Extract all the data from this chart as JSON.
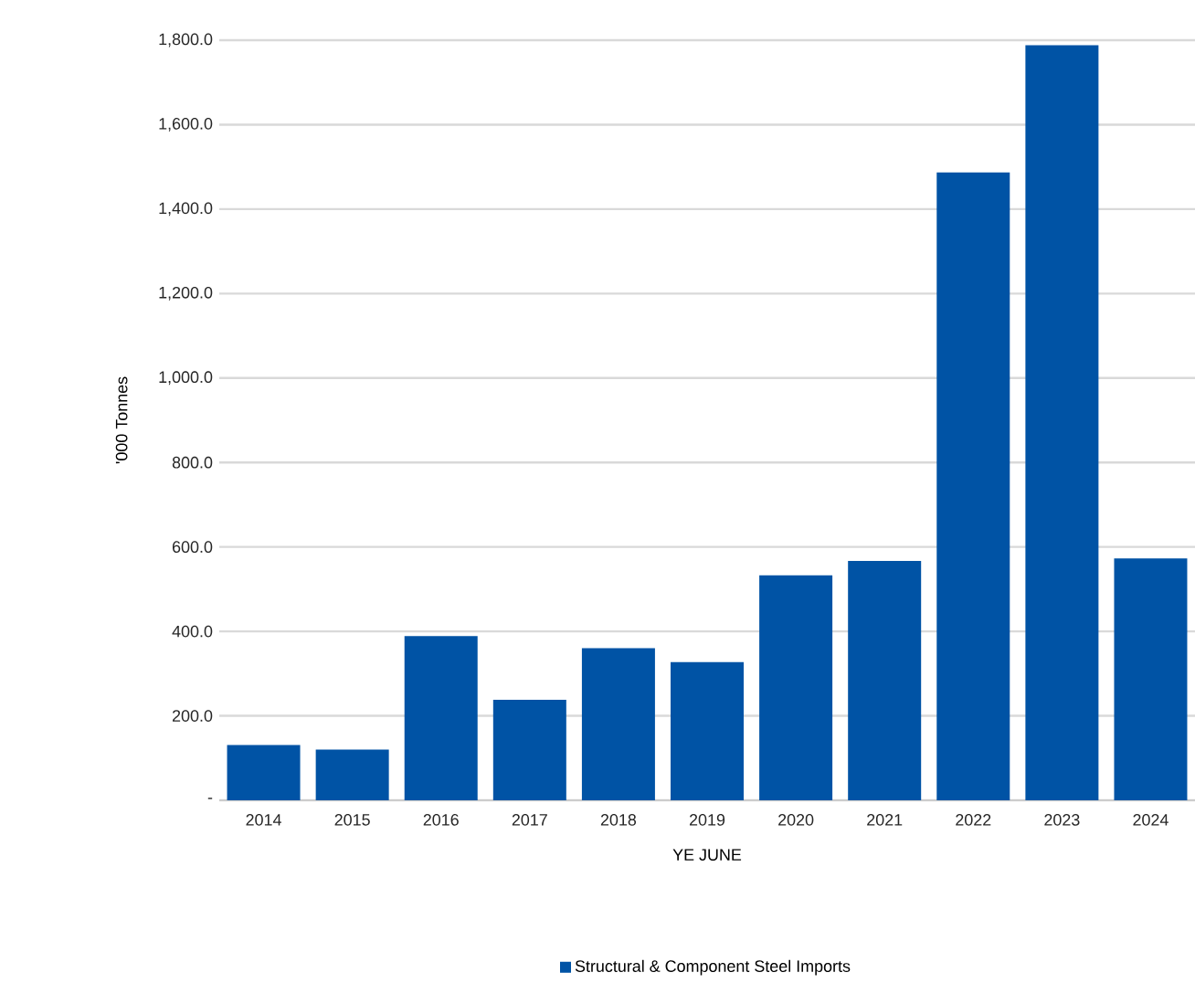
{
  "chart_data": {
    "type": "bar",
    "xlabel": "YE JUNE",
    "ylabel": "'000 Tonnes",
    "categories": [
      "2014",
      "2015",
      "2016",
      "2017",
      "2018",
      "2019",
      "2020",
      "2021",
      "2022",
      "2023",
      "2024"
    ],
    "series": [
      {
        "name": "Structural & Component Steel Imports",
        "color": "#0053a5",
        "values": [
          131,
          120,
          389,
          238,
          360,
          327,
          533,
          567,
          1487,
          1788,
          573
        ]
      }
    ],
    "ylim": [
      0,
      1800
    ],
    "yticks": [
      {
        "value": 0,
        "label": "-"
      },
      {
        "value": 200,
        "label": "200.0"
      },
      {
        "value": 400,
        "label": "400.0"
      },
      {
        "value": 600,
        "label": "600.0"
      },
      {
        "value": 800,
        "label": "800.0"
      },
      {
        "value": 1000,
        "label": "1,000.0"
      },
      {
        "value": 1200,
        "label": "1,200.0"
      },
      {
        "value": 1400,
        "label": "1,400.0"
      },
      {
        "value": 1600,
        "label": "1,600.0"
      },
      {
        "value": 1800,
        "label": "1,800.0"
      }
    ],
    "grid": "y",
    "legend": "bottom"
  }
}
